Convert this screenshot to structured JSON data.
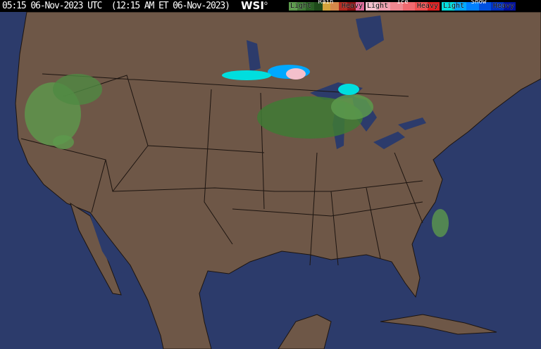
{
  "header": {
    "timestamp": "05:15 06-Nov-2023 UTC  (12:15 AM ET 06-Nov-2023)",
    "logo": "WSI",
    "legend": [
      {
        "title": "Rain",
        "light": "Light",
        "heavy": "Heavy",
        "colors": [
          "#5c9a4c",
          "#3f7a35",
          "#2a5e24",
          "#1e4a1a",
          "#d4a43c",
          "#d6884a",
          "#b22a20",
          "#8c1414",
          "#e06a9a"
        ]
      },
      {
        "title": "Ice",
        "light": "Light",
        "heavy": "Heavy",
        "colors": [
          "#f4c0cc",
          "#f0a0b0",
          "#f08890",
          "#f06a70",
          "#ee5050",
          "#e02020"
        ]
      },
      {
        "title": "Snow",
        "light": "Light",
        "heavy": "Heavy",
        "colors": [
          "#00dede",
          "#00a8ff",
          "#0080ff",
          "#0050e0",
          "#0030c0",
          "#0010a0"
        ]
      }
    ]
  },
  "map": {
    "ocean_color": "#2c3b6b",
    "land_color": "#6e5747",
    "border_color": "#1c1410"
  }
}
